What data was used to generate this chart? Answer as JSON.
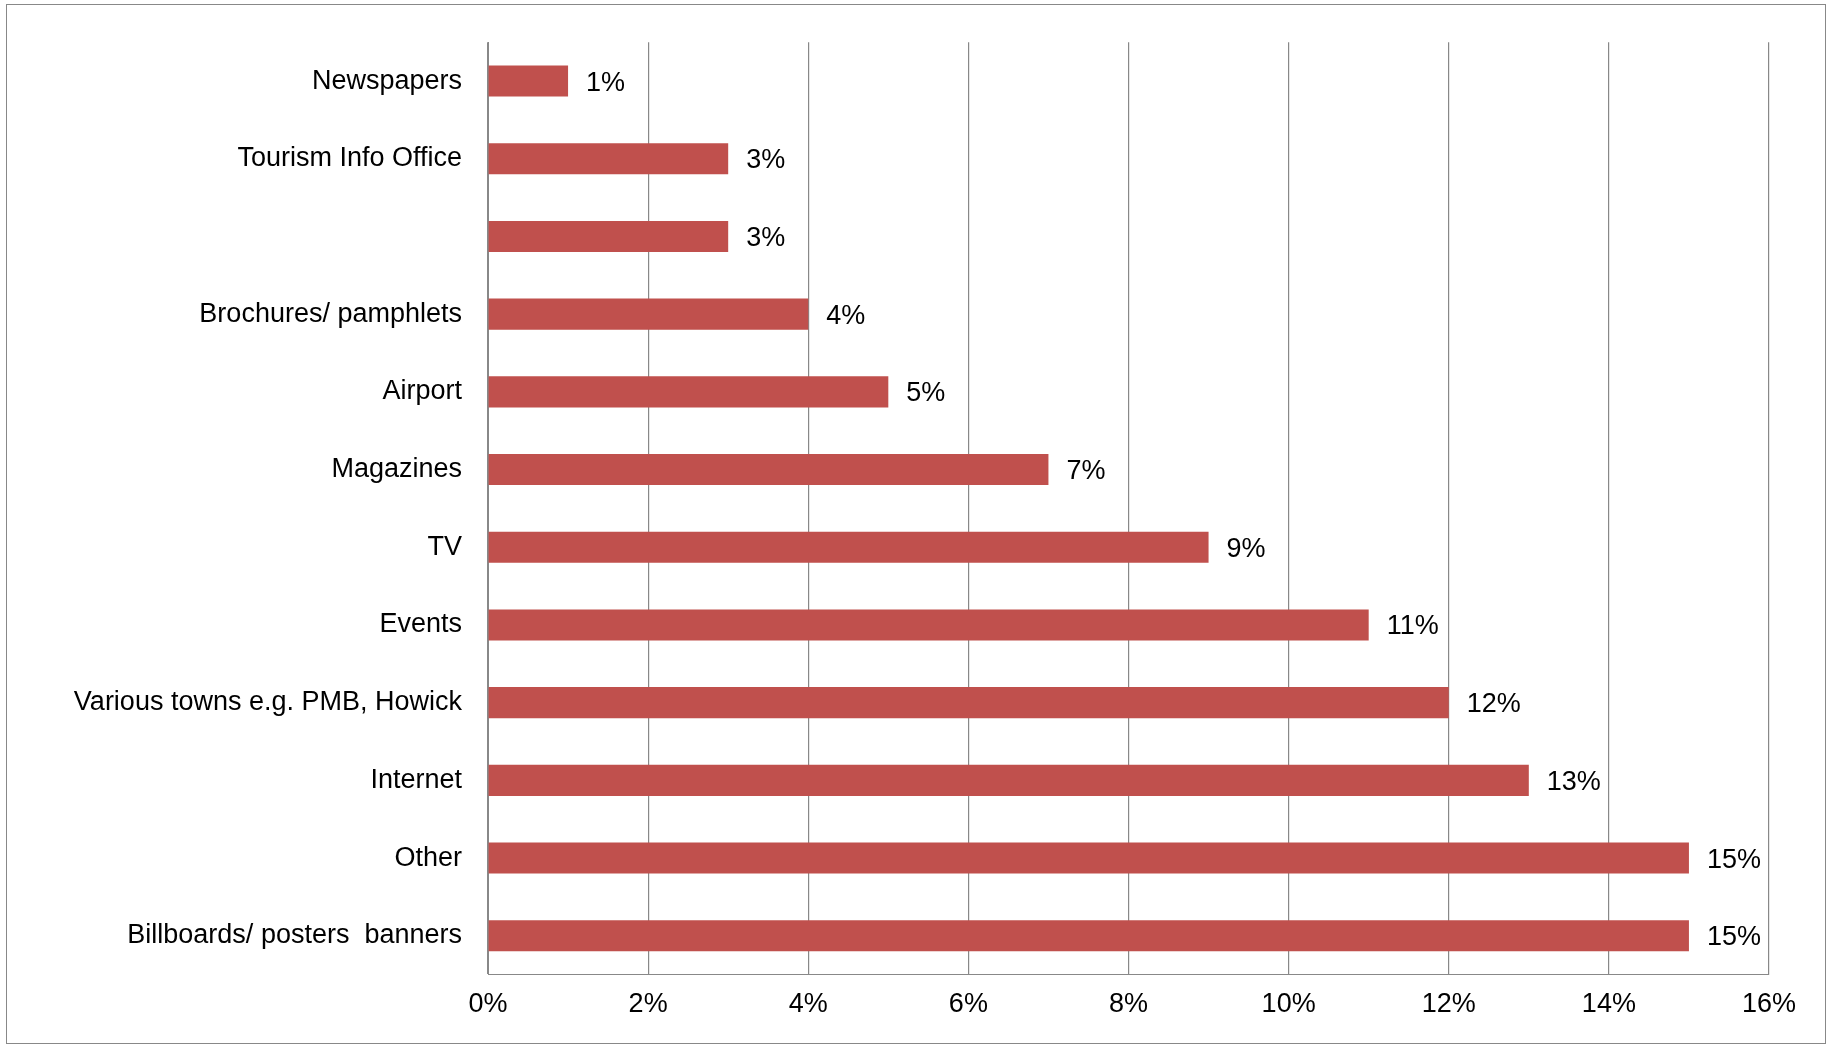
{
  "chart_data": {
    "type": "bar",
    "orientation": "horizontal",
    "categories": [
      "Newspapers",
      "Tourism Info Office",
      null,
      "Brochures/ pamphlets",
      "Airport",
      "Magazines",
      "TV",
      "Events",
      "Various towns e.g. PMB, Howick",
      "Internet",
      "Other",
      "Billboards/ posters  banners"
    ],
    "values": [
      1,
      3,
      3,
      4,
      5,
      7,
      9,
      11,
      12,
      13,
      15,
      15
    ],
    "value_labels": [
      "1%",
      "3%",
      "3%",
      "4%",
      "5%",
      "7%",
      "9%",
      "11%",
      "12%",
      "13%",
      "15%",
      "15%"
    ],
    "color": "#c0504d",
    "xlim": [
      0,
      16
    ],
    "xticks": [
      {
        "value": 0,
        "label": "0%"
      },
      {
        "value": 2,
        "label": "2%"
      },
      {
        "value": 4,
        "label": "4%"
      },
      {
        "value": 6,
        "label": "6%"
      },
      {
        "value": 8,
        "label": "8%"
      },
      {
        "value": 10,
        "label": "10%"
      },
      {
        "value": 12,
        "label": "12%"
      },
      {
        "value": 14,
        "label": "14%"
      },
      {
        "value": 16,
        "label": "16%"
      }
    ],
    "grid": "x",
    "legend": false
  }
}
